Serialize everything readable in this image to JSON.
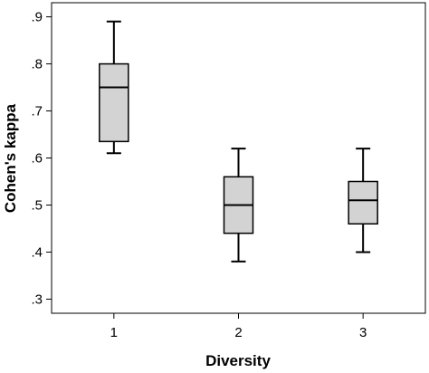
{
  "chart_data": {
    "type": "box",
    "title": "",
    "xlabel": "Diversity",
    "ylabel": "Cohen's kappa",
    "ylim": [
      0.27,
      0.93
    ],
    "y_ticks": [
      0.3,
      0.4,
      0.5,
      0.6,
      0.7,
      0.8,
      0.9
    ],
    "y_tick_labels": [
      ".3",
      ".4",
      ".5",
      ".6",
      ".7",
      ".8",
      ".9"
    ],
    "categories": [
      "1",
      "2",
      "3"
    ],
    "boxes": [
      {
        "category": "1",
        "whisker_low": 0.61,
        "q1": 0.635,
        "median": 0.75,
        "q3": 0.8,
        "whisker_high": 0.89
      },
      {
        "category": "2",
        "whisker_low": 0.38,
        "q1": 0.44,
        "median": 0.5,
        "q3": 0.56,
        "whisker_high": 0.62
      },
      {
        "category": "3",
        "whisker_low": 0.4,
        "q1": 0.46,
        "median": 0.51,
        "q3": 0.55,
        "whisker_high": 0.62
      }
    ],
    "box_fill": "#d3d3d3",
    "grid": false,
    "legend": "none"
  }
}
